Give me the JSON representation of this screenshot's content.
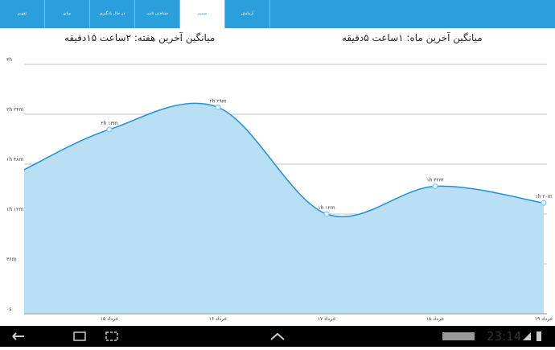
{
  "tabs": [
    "تقویم",
    "میانو",
    "در حال یادگیری",
    "شناختی ثابت",
    "سمیم",
    "آزمایش"
  ],
  "header": {
    "week_average": "میانگین آخرین هفته: ۲ساعت  ۱۵دقیقه",
    "month_average": "میانگین آخرین ماه: ۱ساعت  ۵دقیقه"
  },
  "chart_data": {
    "type": "area",
    "categories": [
      null,
      "۱۵ خرداد",
      "۱۶ خرداد",
      "۱۷ خرداد",
      "۱۸ خرداد",
      "۱۹ خرداد"
    ],
    "values": [
      104,
      133,
      149,
      72,
      92,
      80
    ],
    "value_labels": [
      null,
      "۲h ۱۳m",
      "۲h ۲۹m",
      "۱h ۱۲m",
      "۱h ۳۲m",
      "۱h ۲۰m"
    ],
    "color": "#2a8fd0",
    "fill": "#b8dff3",
    "ylim": [
      0,
      180
    ],
    "yticks": [
      {
        "value": 0,
        "label": "۰s"
      },
      {
        "value": 36,
        "label": "۳۶m"
      },
      {
        "value": 72,
        "label": "۱h ۱۲m"
      },
      {
        "value": 108,
        "label": "۱h ۴۸m"
      },
      {
        "value": 144,
        "label": "۲h ۲۴m"
      },
      {
        "value": 180,
        "label": "۳h"
      }
    ],
    "grid": true
  },
  "status_bar": {
    "time": "23:14"
  }
}
